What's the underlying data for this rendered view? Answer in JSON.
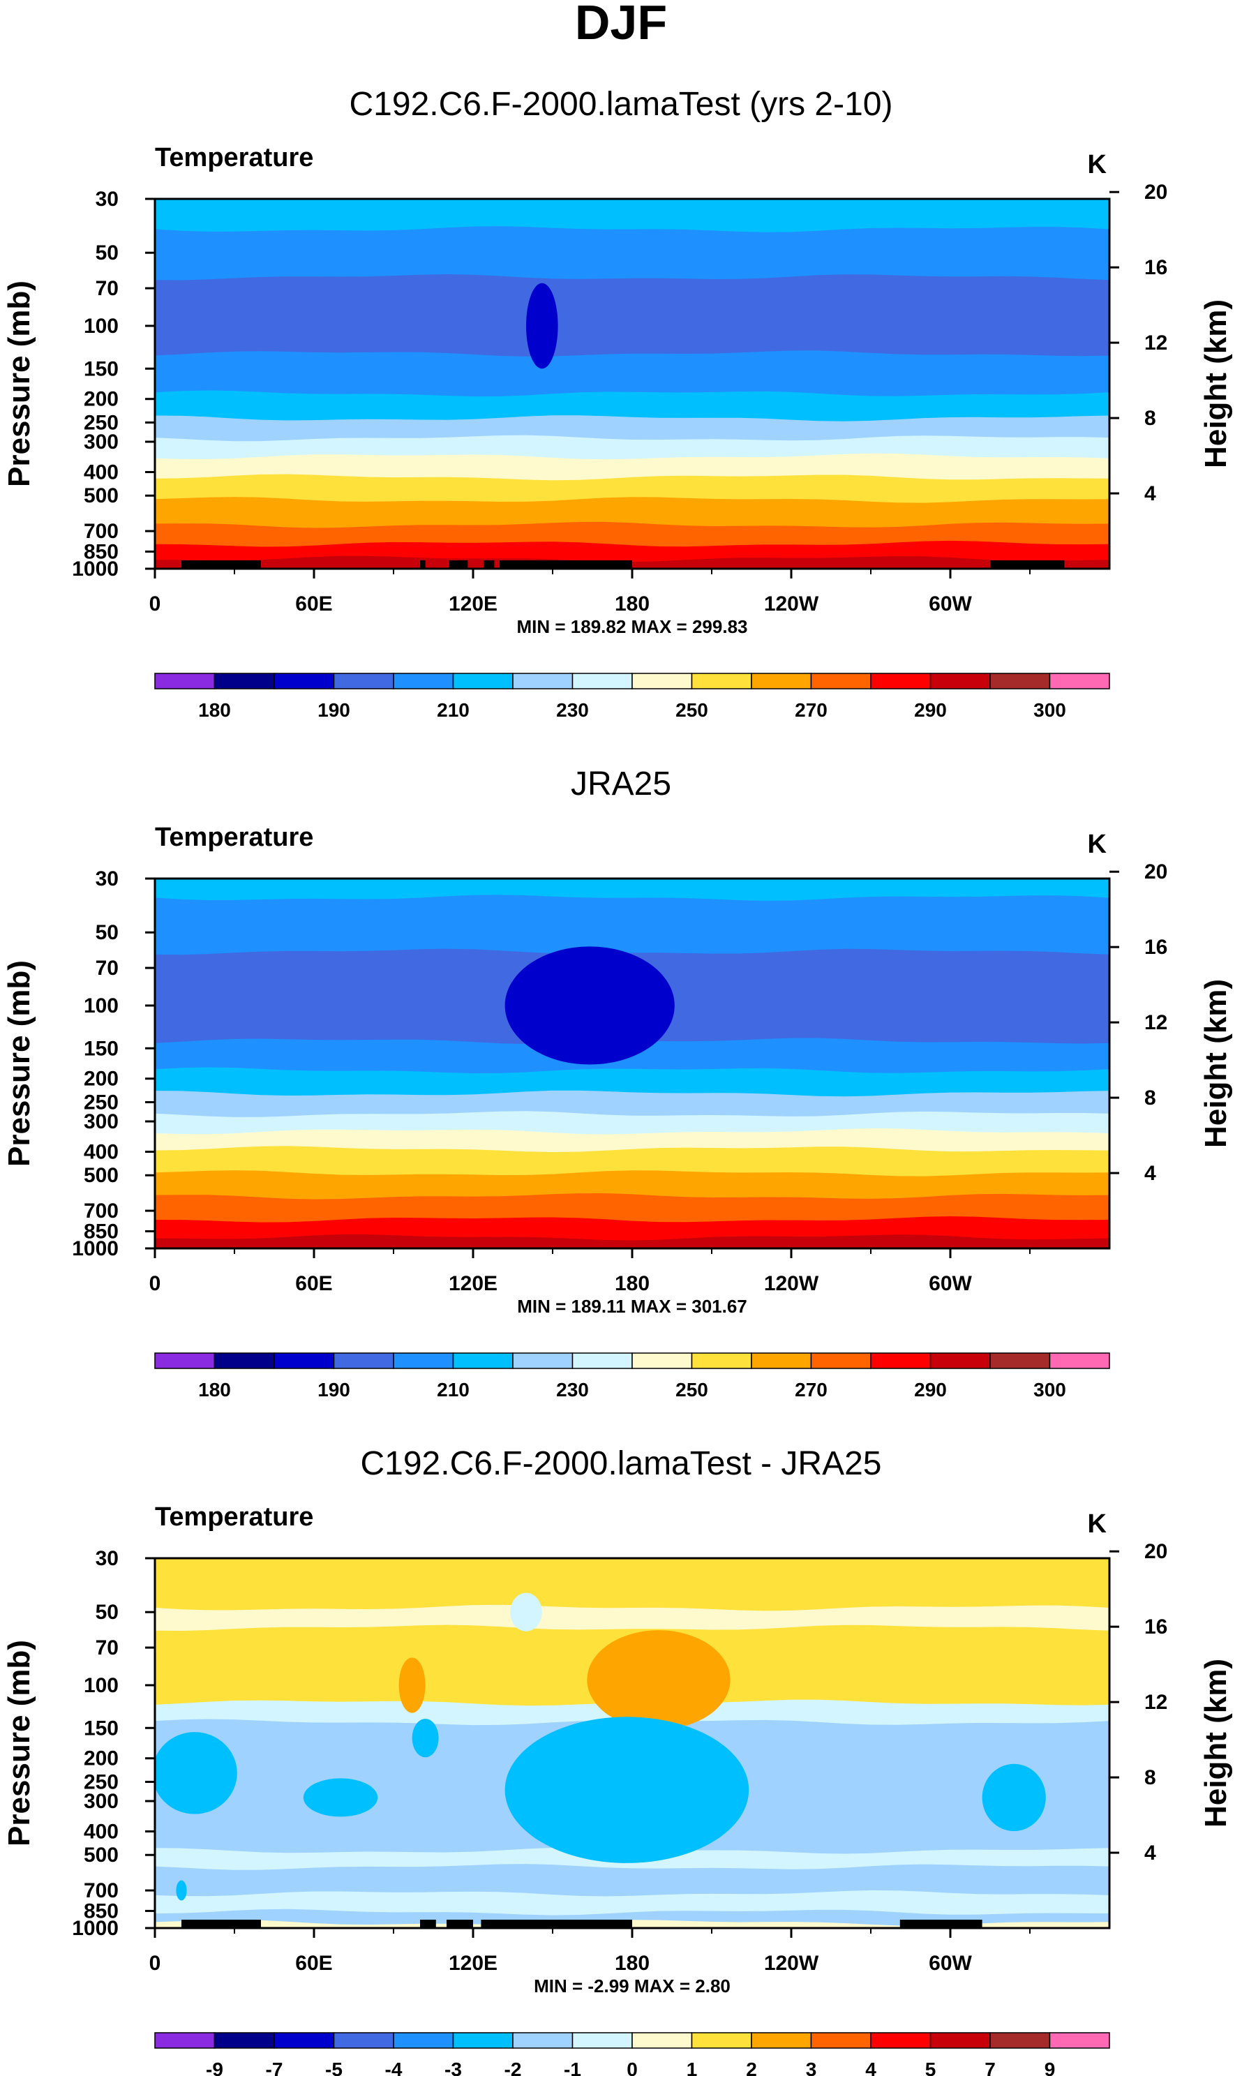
{
  "figure_title": "DJF",
  "chart_data": [
    {
      "type": "filled-contour",
      "title": "C192.C6.F-2000.lamaTest (yrs 2-10)",
      "variable": "Temperature",
      "units": "K",
      "xlabel": "",
      "ylabel": "Pressure (mb)",
      "y2label": "Height (km)",
      "x_range_deg": [
        0,
        360
      ],
      "x_ticks": [
        {
          "deg": 0,
          "label": "0"
        },
        {
          "deg": 60,
          "label": "60E"
        },
        {
          "deg": 120,
          "label": "120E"
        },
        {
          "deg": 180,
          "label": "180"
        },
        {
          "deg": 240,
          "label": "120W"
        },
        {
          "deg": 300,
          "label": "60W"
        }
      ],
      "pressure_ticks": [
        30,
        50,
        70,
        100,
        150,
        200,
        250,
        300,
        400,
        500,
        700,
        850,
        1000
      ],
      "height_ticks_km": [
        4,
        8,
        12,
        16,
        20
      ],
      "stats": "MIN = 189.82   MAX = 299.83",
      "min": 189.82,
      "max": 299.83,
      "colorbar": {
        "colors": [
          "#8a2be2",
          "#00008b",
          "#0000cd",
          "#4169e1",
          "#1e90ff",
          "#00bfff",
          "#a0d2ff",
          "#d2f5ff",
          "#fffacd",
          "#ffe13c",
          "#ffa500",
          "#ff6400",
          "#ff0000",
          "#c8000a",
          "#a52a2a",
          "#ff69b4"
        ],
        "labels": [
          {
            "idx": 1,
            "text": "180"
          },
          {
            "idx": 3,
            "text": "190"
          },
          {
            "idx": 5,
            "text": "210"
          },
          {
            "idx": 7,
            "text": "230"
          },
          {
            "idx": 9,
            "text": "250"
          },
          {
            "idx": 11,
            "text": "270"
          },
          {
            "idx": 13,
            "text": "290"
          },
          {
            "idx": 15,
            "text": "300"
          }
        ]
      },
      "bands": [
        {
          "p": 40,
          "color": "#00bfff"
        },
        {
          "p": 63,
          "color": "#1e90ff"
        },
        {
          "p": 130,
          "color": "#4169e1"
        },
        {
          "p": 190,
          "color": "#1e90ff"
        },
        {
          "p": 240,
          "color": "#00bfff"
        },
        {
          "p": 290,
          "color": "#a0d2ff"
        },
        {
          "p": 345,
          "color": "#d2f5ff"
        },
        {
          "p": 420,
          "color": "#fffacd"
        },
        {
          "p": 520,
          "color": "#ffe13c"
        },
        {
          "p": 660,
          "color": "#ffa500"
        },
        {
          "p": 790,
          "color": "#ff6400"
        },
        {
          "p": 910,
          "color": "#ff0000"
        },
        {
          "p": 1000,
          "color": "#c8000a"
        }
      ],
      "blobs": [
        {
          "lon": 146,
          "p": 100,
          "rlon": 6,
          "rp": 2,
          "color": "#0000cd"
        }
      ],
      "masks": [
        [
          10,
          40
        ],
        [
          100,
          102
        ],
        [
          111,
          118
        ],
        [
          124,
          128
        ],
        [
          130,
          180
        ],
        [
          315,
          343
        ]
      ]
    },
    {
      "type": "filled-contour",
      "title": "JRA25",
      "variable": "Temperature",
      "units": "K",
      "xlabel": "",
      "ylabel": "Pressure (mb)",
      "y2label": "Height (km)",
      "x_range_deg": [
        0,
        360
      ],
      "x_ticks": [
        {
          "deg": 0,
          "label": "0"
        },
        {
          "deg": 60,
          "label": "60E"
        },
        {
          "deg": 120,
          "label": "120E"
        },
        {
          "deg": 180,
          "label": "180"
        },
        {
          "deg": 240,
          "label": "120W"
        },
        {
          "deg": 300,
          "label": "60W"
        }
      ],
      "pressure_ticks": [
        30,
        50,
        70,
        100,
        150,
        200,
        250,
        300,
        400,
        500,
        700,
        850,
        1000
      ],
      "height_ticks_km": [
        4,
        8,
        12,
        16,
        20
      ],
      "stats": "MIN = 189.11   MAX = 301.67",
      "min": 189.11,
      "max": 301.67,
      "colorbar": {
        "colors": [
          "#8a2be2",
          "#00008b",
          "#0000cd",
          "#4169e1",
          "#1e90ff",
          "#00bfff",
          "#a0d2ff",
          "#d2f5ff",
          "#fffacd",
          "#ffe13c",
          "#ffa500",
          "#ff6400",
          "#ff0000",
          "#c8000a",
          "#a52a2a",
          "#ff69b4"
        ],
        "labels": [
          {
            "idx": 1,
            "text": "180"
          },
          {
            "idx": 3,
            "text": "190"
          },
          {
            "idx": 5,
            "text": "210"
          },
          {
            "idx": 7,
            "text": "230"
          },
          {
            "idx": 9,
            "text": "250"
          },
          {
            "idx": 11,
            "text": "270"
          },
          {
            "idx": 13,
            "text": "290"
          },
          {
            "idx": 15,
            "text": "300"
          }
        ]
      },
      "bands": [
        {
          "p": 36,
          "color": "#00bfff"
        },
        {
          "p": 60,
          "color": "#1e90ff"
        },
        {
          "p": 140,
          "color": "#4169e1"
        },
        {
          "p": 185,
          "color": "#1e90ff"
        },
        {
          "p": 230,
          "color": "#00bfff"
        },
        {
          "p": 280,
          "color": "#a0d2ff"
        },
        {
          "p": 330,
          "color": "#d2f5ff"
        },
        {
          "p": 390,
          "color": "#fffacd"
        },
        {
          "p": 490,
          "color": "#ffe13c"
        },
        {
          "p": 610,
          "color": "#ffa500"
        },
        {
          "p": 760,
          "color": "#ff6400"
        },
        {
          "p": 900,
          "color": "#ff0000"
        },
        {
          "p": 1000,
          "color": "#c8000a"
        }
      ],
      "blobs": [
        {
          "lon": 164,
          "p": 100,
          "rlon": 32,
          "rp": 3,
          "color": "#0000cd"
        }
      ],
      "masks": []
    },
    {
      "type": "filled-contour",
      "title": "C192.C6.F-2000.lamaTest - JRA25",
      "variable": "Temperature",
      "units": "K",
      "xlabel": "",
      "ylabel": "Pressure (mb)",
      "y2label": "Height (km)",
      "x_range_deg": [
        0,
        360
      ],
      "x_ticks": [
        {
          "deg": 0,
          "label": "0"
        },
        {
          "deg": 60,
          "label": "60E"
        },
        {
          "deg": 120,
          "label": "120E"
        },
        {
          "deg": 180,
          "label": "180"
        },
        {
          "deg": 240,
          "label": "120W"
        },
        {
          "deg": 300,
          "label": "60W"
        }
      ],
      "pressure_ticks": [
        30,
        50,
        70,
        100,
        150,
        200,
        250,
        300,
        400,
        500,
        700,
        850,
        1000
      ],
      "height_ticks_km": [
        4,
        8,
        12,
        16,
        20
      ],
      "stats": "MIN = -2.99   MAX = 2.80",
      "min": -2.99,
      "max": 2.8,
      "colorbar": {
        "colors": [
          "#8a2be2",
          "#00008b",
          "#0000cd",
          "#4169e1",
          "#1e90ff",
          "#00bfff",
          "#a0d2ff",
          "#d2f5ff",
          "#fffacd",
          "#ffe13c",
          "#ffa500",
          "#ff6400",
          "#ff0000",
          "#c8000a",
          "#a52a2a",
          "#ff69b4"
        ],
        "labels": [
          {
            "idx": 1,
            "text": "-9"
          },
          {
            "idx": 2,
            "text": "-7"
          },
          {
            "idx": 3,
            "text": "-5"
          },
          {
            "idx": 4,
            "text": "-4"
          },
          {
            "idx": 5,
            "text": "-3"
          },
          {
            "idx": 6,
            "text": "-2"
          },
          {
            "idx": 7,
            "text": "-1"
          },
          {
            "idx": 8,
            "text": "0"
          },
          {
            "idx": 9,
            "text": "1"
          },
          {
            "idx": 10,
            "text": "2"
          },
          {
            "idx": 11,
            "text": "3"
          },
          {
            "idx": 12,
            "text": "4"
          },
          {
            "idx": 13,
            "text": "5"
          },
          {
            "idx": 14,
            "text": "7"
          },
          {
            "idx": 15,
            "text": "9"
          }
        ]
      },
      "bands": [
        {
          "p": 48,
          "color": "#ffe13c"
        },
        {
          "p": 58,
          "color": "#fffacd"
        },
        {
          "p": 118,
          "color": "#ffe13c"
        },
        {
          "p": 142,
          "color": "#d2f5ff"
        },
        {
          "p": 480,
          "color": "#a0d2ff"
        },
        {
          "p": 560,
          "color": "#d2f5ff"
        },
        {
          "p": 720,
          "color": "#a0d2ff"
        },
        {
          "p": 860,
          "color": "#d2f5ff"
        },
        {
          "p": 950,
          "color": "#a0d2ff"
        },
        {
          "p": 1000,
          "color": "#fffacd"
        }
      ],
      "blobs": [
        {
          "lon": 190,
          "p": 95,
          "rlon": 27,
          "rp": 2.4,
          "color": "#ffa500"
        },
        {
          "lon": 97,
          "p": 100,
          "rlon": 5,
          "rp": 1.2,
          "color": "#ffa500"
        },
        {
          "lon": 140,
          "p": 50,
          "rlon": 6,
          "rp": 0.8,
          "color": "#d2f5ff"
        },
        {
          "lon": 15,
          "p": 230,
          "rlon": 16,
          "rp": 1.9,
          "color": "#00bfff"
        },
        {
          "lon": 70,
          "p": 290,
          "rlon": 14,
          "rp": 0.8,
          "color": "#00bfff"
        },
        {
          "lon": 178,
          "p": 270,
          "rlon": 46,
          "rp": 4,
          "color": "#00bfff"
        },
        {
          "lon": 324,
          "p": 290,
          "rlon": 12,
          "rp": 1.5,
          "color": "#00bfff"
        },
        {
          "lon": 102,
          "p": 165,
          "rlon": 5,
          "rp": 0.8,
          "color": "#00bfff"
        },
        {
          "lon": 10,
          "p": 700,
          "rlon": 2,
          "rp": 0.4,
          "color": "#00bfff"
        }
      ],
      "masks": [
        [
          10,
          40
        ],
        [
          100,
          106
        ],
        [
          110,
          120
        ],
        [
          123,
          180
        ],
        [
          281,
          312
        ]
      ]
    }
  ]
}
